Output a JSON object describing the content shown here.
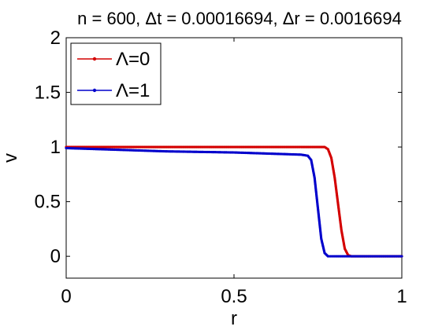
{
  "chart_data": {
    "type": "line",
    "title": "n = 600, Δt = 0.00016694, Δr = 0.0016694",
    "xlabel": "r",
    "ylabel": "v",
    "xlim": [
      0,
      1
    ],
    "ylim": [
      -0.2,
      2
    ],
    "xticks": [
      "0",
      "0.5",
      "1"
    ],
    "yticks": [
      "0",
      "0.5",
      "1",
      "1.5",
      "2"
    ],
    "grid": false,
    "legend_position": "top-left",
    "series": [
      {
        "name": "Λ=0",
        "color": "#d40000",
        "marker": "dot",
        "points": [
          [
            0.0,
            1.0
          ],
          [
            0.1,
            1.0
          ],
          [
            0.2,
            1.0
          ],
          [
            0.3,
            1.0
          ],
          [
            0.4,
            1.0
          ],
          [
            0.5,
            1.0
          ],
          [
            0.6,
            1.0
          ],
          [
            0.7,
            1.0
          ],
          [
            0.77,
            1.0
          ],
          [
            0.78,
            0.98
          ],
          [
            0.79,
            0.9
          ],
          [
            0.8,
            0.72
          ],
          [
            0.81,
            0.48
          ],
          [
            0.82,
            0.24
          ],
          [
            0.83,
            0.07
          ],
          [
            0.84,
            0.01
          ],
          [
            0.85,
            0.0
          ],
          [
            0.9,
            0.0
          ],
          [
            1.0,
            0.0
          ]
        ]
      },
      {
        "name": "Λ=1",
        "color": "#0000cc",
        "marker": "dot",
        "points": [
          [
            0.0,
            0.99
          ],
          [
            0.1,
            0.98
          ],
          [
            0.2,
            0.97
          ],
          [
            0.3,
            0.96
          ],
          [
            0.4,
            0.955
          ],
          [
            0.5,
            0.95
          ],
          [
            0.6,
            0.94
          ],
          [
            0.7,
            0.93
          ],
          [
            0.72,
            0.92
          ],
          [
            0.73,
            0.88
          ],
          [
            0.74,
            0.72
          ],
          [
            0.75,
            0.44
          ],
          [
            0.76,
            0.16
          ],
          [
            0.77,
            0.03
          ],
          [
            0.78,
            0.0
          ],
          [
            0.8,
            0.0
          ],
          [
            0.9,
            0.0
          ],
          [
            1.0,
            0.0
          ]
        ]
      }
    ]
  }
}
